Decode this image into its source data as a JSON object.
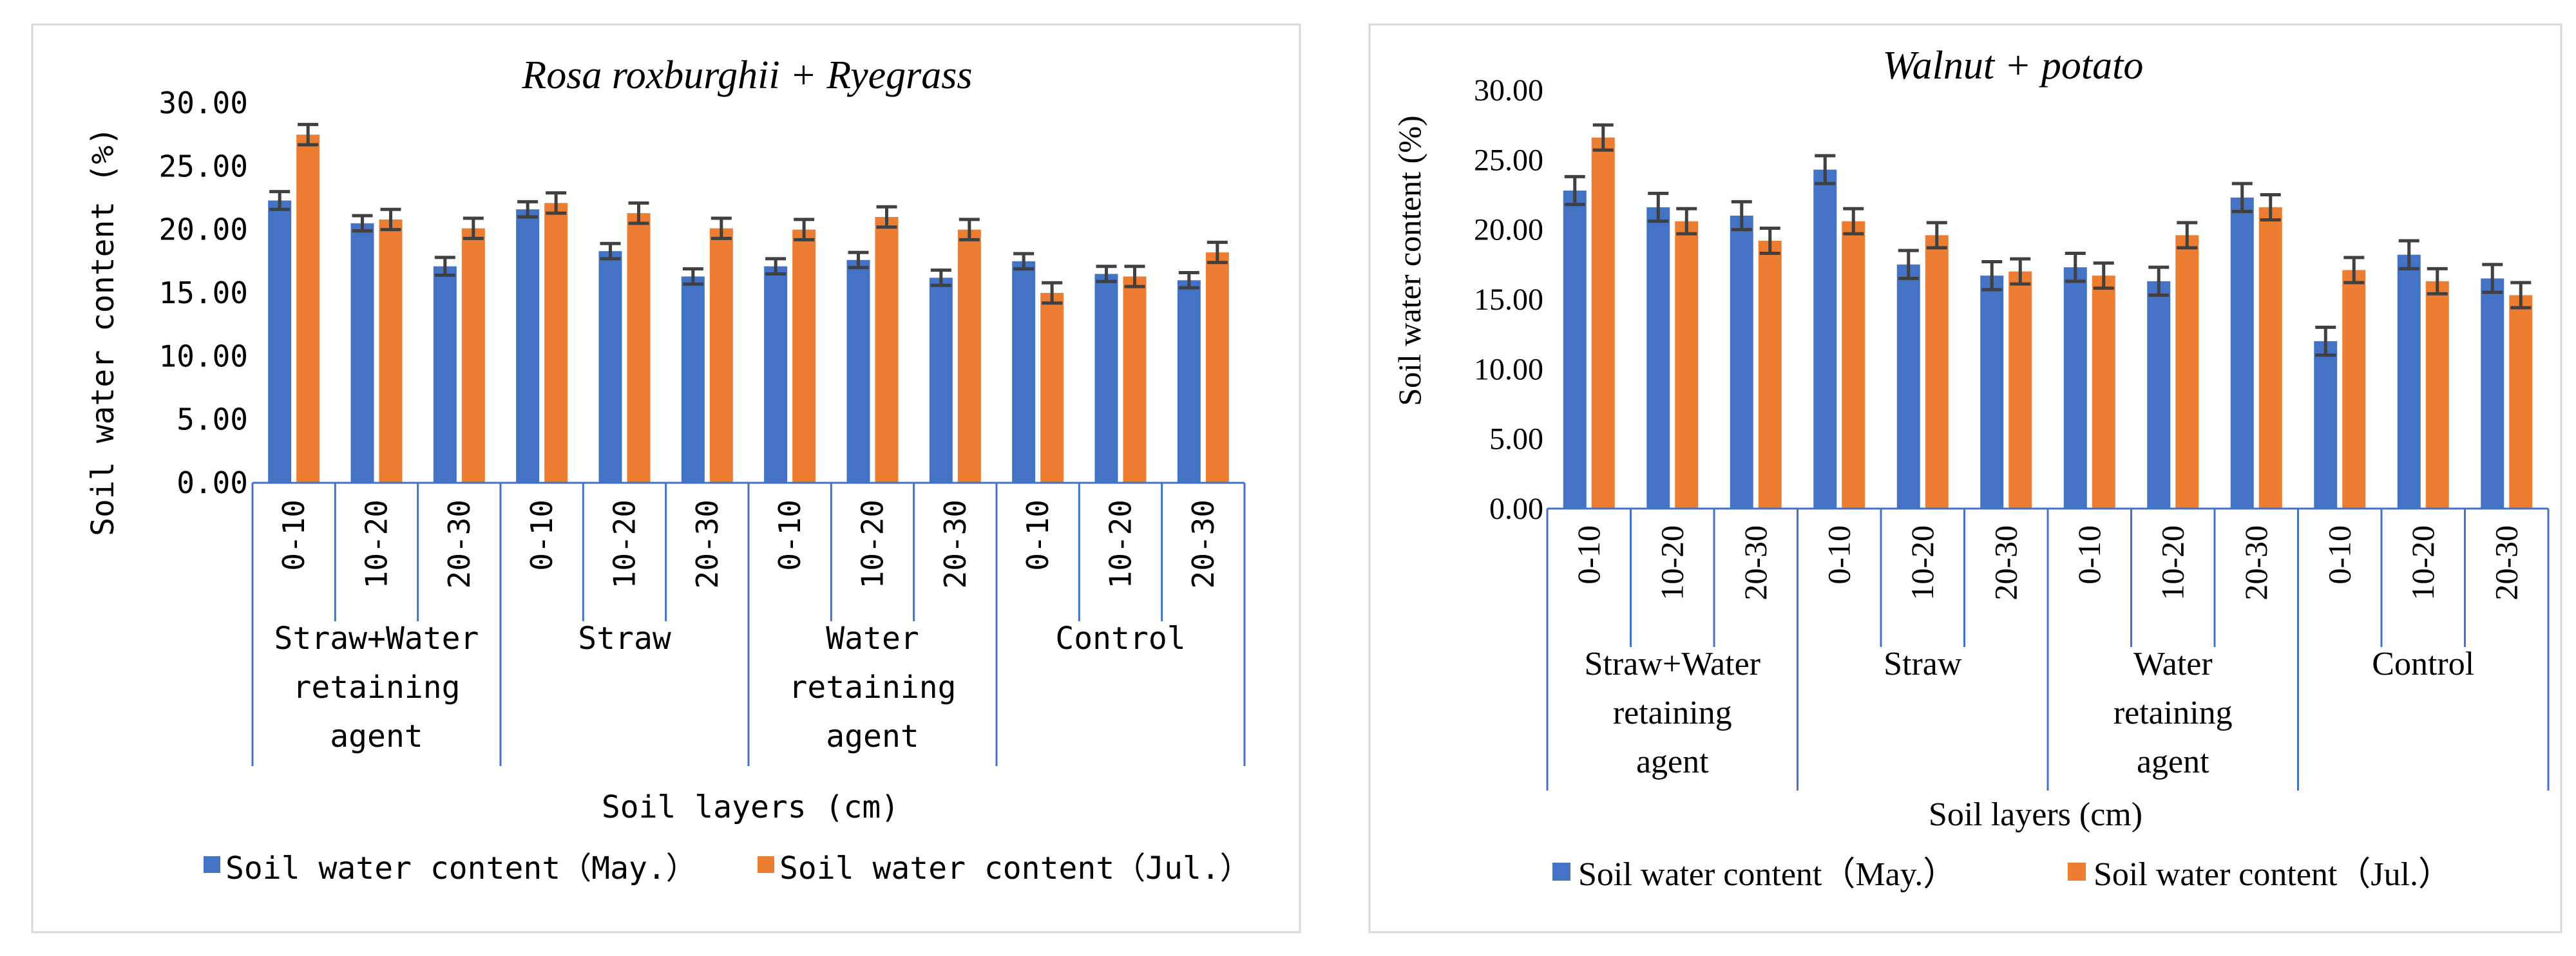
{
  "colors": {
    "may": "#4472c4",
    "jul": "#ed7d31",
    "axis": "#4472c4",
    "error": "#404040",
    "frame": "#d9d9d9"
  },
  "chart_data": [
    {
      "type": "bar",
      "title": "Rosa roxburghii + Ryegrass",
      "xlabel": "Soil layers (cm)",
      "ylabel": "Soil water content (%)",
      "ylim": [
        0,
        30
      ],
      "yticks": [
        "0.00",
        "5.00",
        "10.00",
        "15.00",
        "20.00",
        "25.00",
        "30.00"
      ],
      "grid": false,
      "legend_position": "bottom",
      "categories": [
        "0-10",
        "10-20",
        "20-30",
        "0-10",
        "10-20",
        "20-30",
        "0-10",
        "10-20",
        "20-30",
        "0-10",
        "10-20",
        "20-30"
      ],
      "groups": [
        {
          "label": "Straw+Water retaining agent",
          "lines": [
            "Straw+Water",
            "retaining",
            "agent"
          ]
        },
        {
          "label": "Straw",
          "lines": [
            "Straw"
          ]
        },
        {
          "label": "Water retaining agent",
          "lines": [
            "Water",
            "retaining",
            "agent"
          ]
        },
        {
          "label": "Control",
          "lines": [
            "Control"
          ]
        }
      ],
      "series": [
        {
          "name": "Soil water content（May.）",
          "color": "#4472c4",
          "values": [
            22.3,
            20.5,
            17.1,
            21.6,
            18.3,
            16.3,
            17.1,
            17.6,
            16.2,
            17.5,
            16.5,
            16.0
          ],
          "errors": [
            0.7,
            0.6,
            0.7,
            0.6,
            0.6,
            0.6,
            0.6,
            0.6,
            0.6,
            0.6,
            0.6,
            0.6
          ]
        },
        {
          "name": "Soil water content（Jul.）",
          "color": "#ed7d31",
          "values": [
            27.5,
            20.8,
            20.1,
            22.1,
            21.3,
            20.1,
            20.0,
            21.0,
            20.0,
            15.0,
            16.3,
            18.2
          ],
          "errors": [
            0.8,
            0.8,
            0.8,
            0.8,
            0.8,
            0.8,
            0.8,
            0.8,
            0.8,
            0.8,
            0.8,
            0.8
          ]
        }
      ]
    },
    {
      "type": "bar",
      "title": "Walnut + potato",
      "xlabel": "Soil layers (cm)",
      "ylabel": "Soil water content (%)",
      "ylim": [
        0,
        30
      ],
      "yticks": [
        "0.00",
        "5.00",
        "10.00",
        "15.00",
        "20.00",
        "25.00",
        "30.00"
      ],
      "grid": false,
      "legend_position": "bottom",
      "categories": [
        "0-10",
        "10-20",
        "20-30",
        "0-10",
        "10-20",
        "20-30",
        "0-10",
        "10-20",
        "20-30",
        "0-10",
        "10-20",
        "20-30"
      ],
      "groups": [
        {
          "label": "Straw+Water retaining agent",
          "lines": [
            "Straw+Water",
            "retaining",
            "agent"
          ]
        },
        {
          "label": "Straw",
          "lines": [
            "Straw"
          ]
        },
        {
          "label": "Water retaining agent",
          "lines": [
            "Water",
            "retaining",
            "agent"
          ]
        },
        {
          "label": "Control",
          "lines": [
            "Control"
          ]
        }
      ],
      "series": [
        {
          "name": "Soil water content（May.）",
          "color": "#4472c4",
          "values": [
            22.8,
            21.6,
            21.0,
            24.3,
            17.5,
            16.7,
            17.3,
            16.3,
            22.3,
            12.0,
            18.2,
            16.5
          ],
          "errors": [
            1.0,
            1.0,
            1.0,
            1.0,
            1.0,
            1.0,
            1.0,
            1.0,
            1.0,
            1.0,
            1.0,
            1.0
          ]
        },
        {
          "name": "Soil water content（Jul.）",
          "color": "#ed7d31",
          "values": [
            26.6,
            20.6,
            19.2,
            20.6,
            19.6,
            17.0,
            16.7,
            19.6,
            21.6,
            17.1,
            16.3,
            15.3
          ],
          "errors": [
            0.9,
            0.9,
            0.9,
            0.9,
            0.9,
            0.9,
            0.9,
            0.9,
            0.9,
            0.9,
            0.9,
            0.9
          ]
        }
      ]
    }
  ]
}
